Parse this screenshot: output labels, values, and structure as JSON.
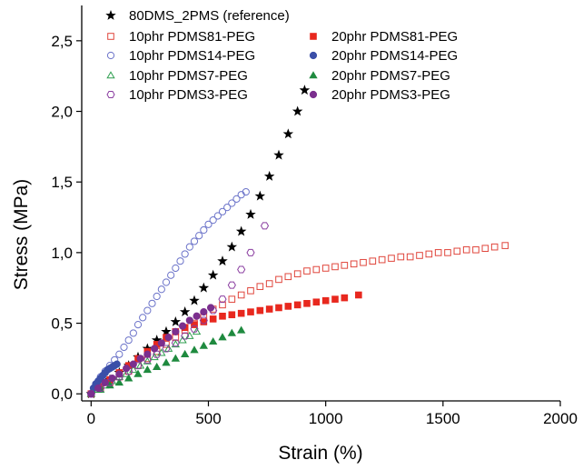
{
  "chart_data": {
    "type": "scatter",
    "xlabel": "Strain (%)",
    "ylabel": "Stress (MPa)",
    "xlim": [
      -40,
      2000
    ],
    "ylim": [
      -0.05,
      2.75
    ],
    "x_ticks": [
      {
        "value": 0,
        "label": "0"
      },
      {
        "value": 500,
        "label": "500"
      },
      {
        "value": 1000,
        "label": "1000"
      },
      {
        "value": 1500,
        "label": "1500"
      },
      {
        "value": 2000,
        "label": "2000"
      }
    ],
    "y_ticks": [
      {
        "value": 0.0,
        "label": "0,0"
      },
      {
        "value": 0.5,
        "label": "0,5"
      },
      {
        "value": 1.0,
        "label": "1,0"
      },
      {
        "value": 1.5,
        "label": "1,5"
      },
      {
        "value": 2.0,
        "label": "2,0"
      },
      {
        "value": 2.5,
        "label": "2,5"
      }
    ],
    "legend_position": "top",
    "grid": false,
    "series": [
      {
        "name": "80DMS_2PMS (reference)",
        "marker": "star",
        "filled": true,
        "color": "#000000",
        "x": [
          0,
          40,
          80,
          120,
          160,
          200,
          240,
          280,
          320,
          360,
          400,
          440,
          480,
          520,
          560,
          600,
          640,
          680,
          720,
          760,
          800,
          840,
          880,
          910
        ],
        "y": [
          0,
          0.05,
          0.1,
          0.15,
          0.2,
          0.26,
          0.32,
          0.38,
          0.44,
          0.51,
          0.58,
          0.66,
          0.75,
          0.84,
          0.94,
          1.04,
          1.15,
          1.27,
          1.4,
          1.54,
          1.69,
          1.84,
          2.0,
          2.15
        ]
      },
      {
        "name": "10phr PDMS81-PEG",
        "marker": "square",
        "filled": false,
        "color": "#e0463c",
        "x": [
          0,
          40,
          80,
          120,
          160,
          200,
          240,
          280,
          320,
          360,
          400,
          440,
          480,
          520,
          560,
          600,
          640,
          680,
          720,
          760,
          800,
          840,
          880,
          920,
          960,
          1000,
          1040,
          1080,
          1120,
          1160,
          1200,
          1240,
          1280,
          1320,
          1360,
          1400,
          1440,
          1480,
          1520,
          1560,
          1600,
          1640,
          1680,
          1720,
          1765
        ],
        "y": [
          0,
          0.04,
          0.08,
          0.12,
          0.16,
          0.2,
          0.25,
          0.3,
          0.35,
          0.4,
          0.45,
          0.5,
          0.55,
          0.6,
          0.63,
          0.67,
          0.7,
          0.73,
          0.76,
          0.78,
          0.81,
          0.83,
          0.85,
          0.87,
          0.88,
          0.89,
          0.9,
          0.91,
          0.92,
          0.93,
          0.94,
          0.95,
          0.96,
          0.97,
          0.97,
          0.98,
          0.99,
          1.0,
          1.0,
          1.01,
          1.02,
          1.02,
          1.03,
          1.04,
          1.05
        ]
      },
      {
        "name": "20phr PDMS81-PEG",
        "marker": "square",
        "filled": true,
        "color": "#e8281e",
        "x": [
          0,
          40,
          80,
          120,
          160,
          200,
          240,
          280,
          320,
          360,
          400,
          440,
          480,
          520,
          560,
          600,
          640,
          680,
          720,
          760,
          800,
          840,
          880,
          920,
          960,
          1000,
          1040,
          1080,
          1140
        ],
        "y": [
          0,
          0.05,
          0.1,
          0.15,
          0.2,
          0.25,
          0.3,
          0.35,
          0.4,
          0.44,
          0.47,
          0.49,
          0.51,
          0.53,
          0.55,
          0.56,
          0.57,
          0.58,
          0.59,
          0.6,
          0.61,
          0.62,
          0.63,
          0.64,
          0.65,
          0.66,
          0.67,
          0.68,
          0.7
        ]
      },
      {
        "name": "10phr PDMS14-PEG",
        "marker": "circle",
        "filled": false,
        "color": "#6b73c9",
        "x": [
          0,
          20,
          40,
          60,
          80,
          100,
          120,
          140,
          160,
          180,
          200,
          220,
          240,
          260,
          280,
          300,
          320,
          340,
          360,
          380,
          400,
          420,
          440,
          460,
          480,
          500,
          520,
          540,
          560,
          580,
          600,
          620,
          640,
          660
        ],
        "y": [
          0,
          0.07,
          0.12,
          0.16,
          0.2,
          0.24,
          0.28,
          0.33,
          0.38,
          0.43,
          0.49,
          0.54,
          0.59,
          0.64,
          0.69,
          0.74,
          0.79,
          0.84,
          0.89,
          0.94,
          0.99,
          1.04,
          1.08,
          1.12,
          1.16,
          1.2,
          1.23,
          1.26,
          1.29,
          1.32,
          1.35,
          1.38,
          1.41,
          1.43
        ]
      },
      {
        "name": "20phr PDMS14-PEG",
        "marker": "circle",
        "filled": true,
        "color": "#3b4fa8",
        "x": [
          0,
          10,
          20,
          30,
          40,
          50,
          60,
          70,
          80,
          90,
          100,
          110
        ],
        "y": [
          0,
          0.04,
          0.07,
          0.09,
          0.11,
          0.13,
          0.15,
          0.17,
          0.18,
          0.19,
          0.2,
          0.21
        ]
      },
      {
        "name": "10phr PDMS7-PEG",
        "marker": "triangle",
        "filled": false,
        "color": "#2e9e4f",
        "x": [
          0,
          30,
          60,
          90,
          120,
          150,
          180,
          210,
          240,
          270,
          300,
          330,
          360,
          390,
          420,
          450
        ],
        "y": [
          0,
          0.03,
          0.06,
          0.09,
          0.12,
          0.14,
          0.17,
          0.2,
          0.23,
          0.26,
          0.29,
          0.32,
          0.35,
          0.38,
          0.41,
          0.44
        ]
      },
      {
        "name": "20phr PDMS7-PEG",
        "marker": "triangle",
        "filled": true,
        "color": "#1f8a3f",
        "x": [
          0,
          40,
          80,
          120,
          160,
          200,
          240,
          280,
          320,
          360,
          400,
          440,
          480,
          520,
          560,
          600,
          640
        ],
        "y": [
          0,
          0.03,
          0.06,
          0.08,
          0.11,
          0.14,
          0.17,
          0.19,
          0.22,
          0.25,
          0.28,
          0.31,
          0.34,
          0.37,
          0.4,
          0.43,
          0.45
        ]
      },
      {
        "name": "10phr PDMS3-PEG",
        "marker": "hexagon",
        "filled": false,
        "color": "#8a3da0",
        "x": [
          0,
          40,
          80,
          120,
          160,
          200,
          240,
          280,
          320,
          360,
          400,
          440,
          480,
          520,
          560,
          600,
          640,
          680,
          740
        ],
        "y": [
          0,
          0.04,
          0.08,
          0.12,
          0.16,
          0.2,
          0.24,
          0.28,
          0.32,
          0.36,
          0.41,
          0.46,
          0.52,
          0.59,
          0.67,
          0.77,
          0.88,
          1.0,
          1.19
        ]
      },
      {
        "name": "20phr PDMS3-PEG",
        "marker": "circle",
        "filled": true,
        "color": "#7b2f8e",
        "x": [
          0,
          30,
          60,
          90,
          120,
          150,
          180,
          210,
          240,
          270,
          300,
          330,
          360,
          390,
          420,
          450,
          480,
          510
        ],
        "y": [
          0,
          0.04,
          0.08,
          0.11,
          0.14,
          0.18,
          0.21,
          0.25,
          0.28,
          0.32,
          0.36,
          0.4,
          0.44,
          0.48,
          0.52,
          0.55,
          0.58,
          0.61
        ]
      }
    ]
  }
}
